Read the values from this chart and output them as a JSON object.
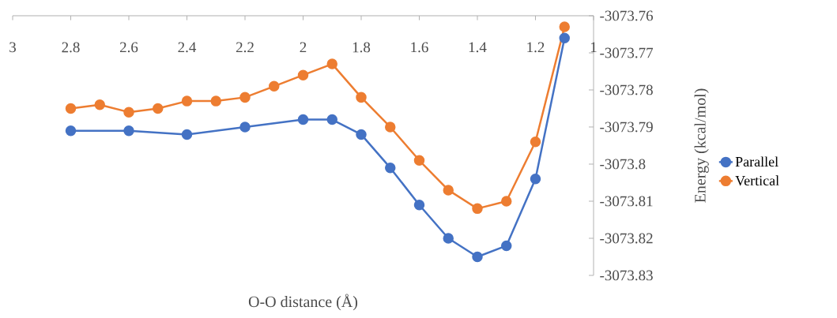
{
  "chart_data": {
    "type": "line",
    "xlabel": "O-O distance (Å)",
    "ylabel": "Energy (kcal/mol)",
    "xlim": [
      3,
      1
    ],
    "xticks": [
      3,
      2.8,
      2.6,
      2.4,
      2.2,
      2,
      1.8,
      1.6,
      1.4,
      1.2,
      1
    ],
    "ylim": [
      -3073.83,
      -3073.76
    ],
    "yticks": [
      -3073.83,
      -3073.82,
      -3073.81,
      -3073.8,
      -3073.79,
      -3073.78,
      -3073.77,
      -3073.76
    ],
    "legend": "right",
    "marker": "circle",
    "line_style": "solid",
    "series": [
      {
        "name": "Parallel",
        "color": "#4472c4",
        "x": [
          2.8,
          2.6,
          2.4,
          2.2,
          2.0,
          1.9,
          1.8,
          1.7,
          1.6,
          1.5,
          1.4,
          1.3,
          1.2,
          1.1
        ],
        "values": [
          -3073.791,
          -3073.791,
          -3073.792,
          -3073.79,
          -3073.788,
          -3073.788,
          -3073.792,
          -3073.801,
          -3073.811,
          -3073.82,
          -3073.825,
          -3073.822,
          -3073.804,
          -3073.766
        ]
      },
      {
        "name": "Vertical",
        "color": "#ed7d31",
        "x": [
          2.8,
          2.7,
          2.6,
          2.5,
          2.4,
          2.3,
          2.2,
          2.1,
          2.0,
          1.9,
          1.8,
          1.7,
          1.6,
          1.5,
          1.4,
          1.3,
          1.2,
          1.1
        ],
        "values": [
          -3073.785,
          -3073.784,
          -3073.786,
          -3073.785,
          -3073.783,
          -3073.783,
          -3073.782,
          -3073.779,
          -3073.776,
          -3073.773,
          -3073.782,
          -3073.79,
          -3073.799,
          -3073.807,
          -3073.812,
          -3073.81,
          -3073.794,
          -3073.763
        ]
      }
    ]
  }
}
